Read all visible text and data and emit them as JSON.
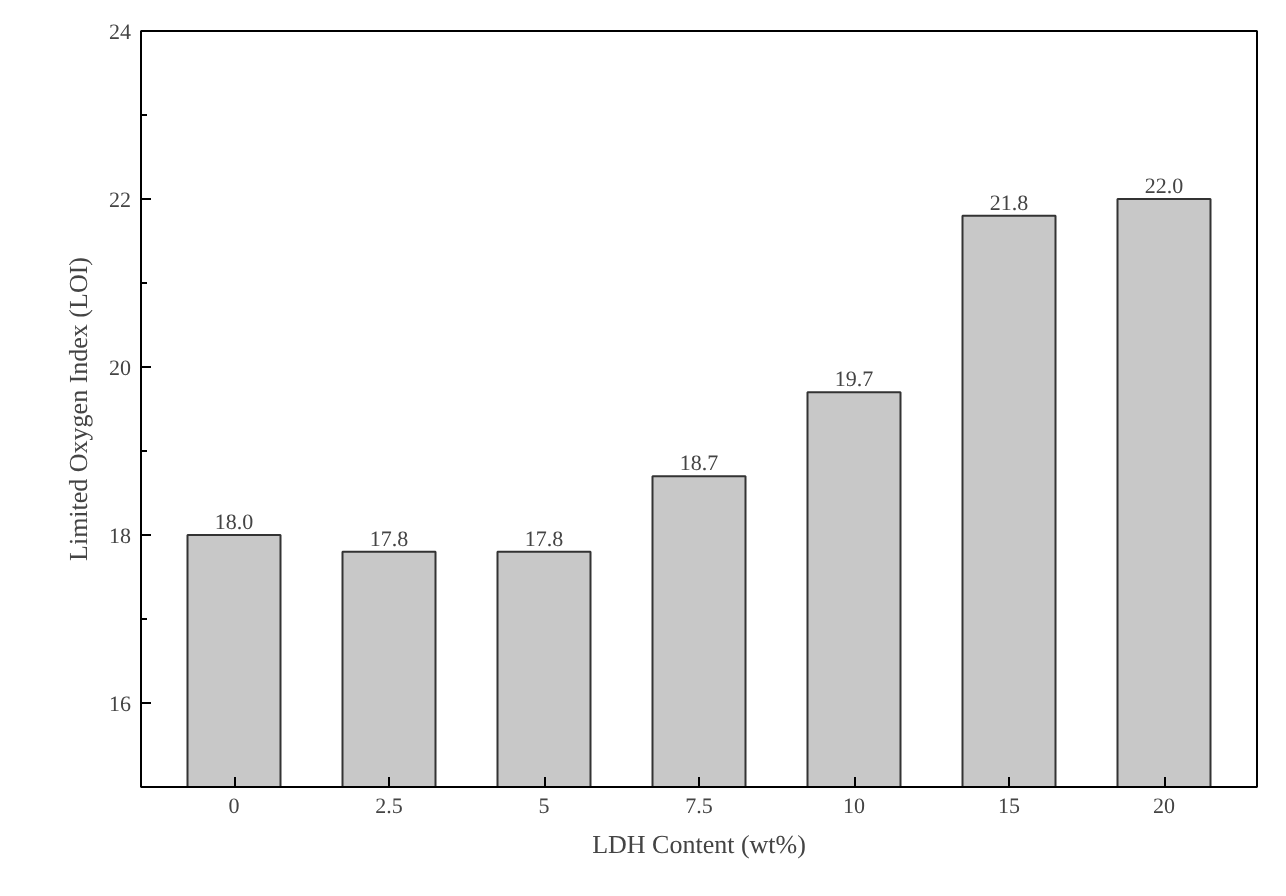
{
  "chart_data": {
    "type": "bar",
    "xlabel": "LDH Content (wt%)",
    "ylabel": "Limited Oxygen Index (LOI)",
    "categories": [
      "0",
      "2.5",
      "5",
      "7.5",
      "10",
      "15",
      "20"
    ],
    "values": [
      18.0,
      17.8,
      17.8,
      18.7,
      19.7,
      21.8,
      22.0
    ],
    "value_labels": [
      "18.0",
      "17.8",
      "17.8",
      "18.7",
      "19.7",
      "21.8",
      "22.0"
    ],
    "color": "#c8c8c8",
    "ylim": [
      15,
      24
    ],
    "yticks": [
      16,
      18,
      20,
      22,
      24
    ],
    "grid": false
  }
}
